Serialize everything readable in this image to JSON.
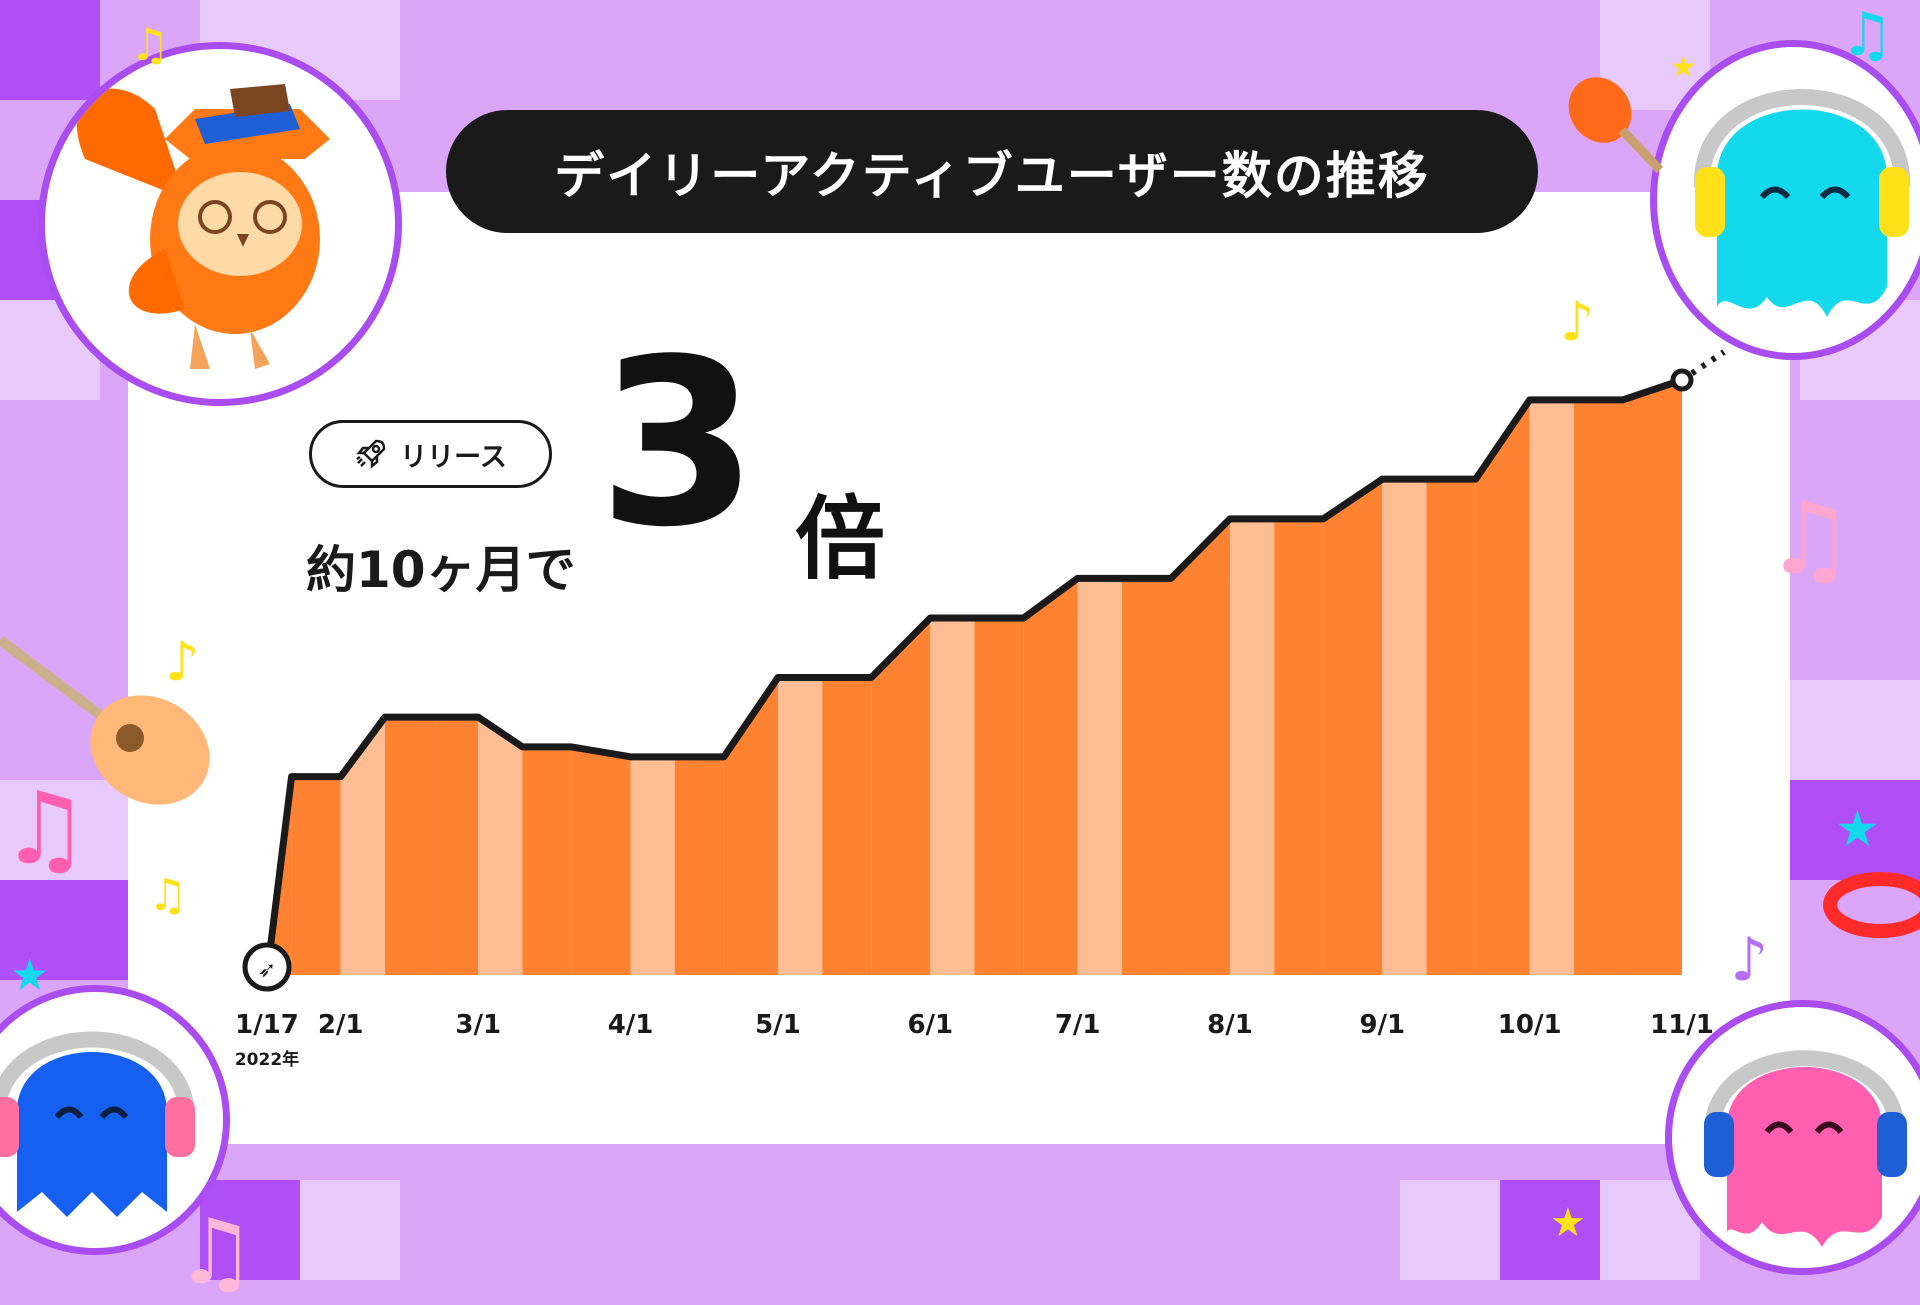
{
  "title": "デイリーアクティブユーザー数の推移",
  "badge": {
    "label": "リリース",
    "icon": "rocket-icon"
  },
  "headline": {
    "period": "約10ヶ月で",
    "multiplier": "3",
    "unit": "倍"
  },
  "colors": {
    "background": "#dba6f7",
    "bar_dark": "#ff8233",
    "bar_light": "#ffbd94",
    "line": "#1a1a1a",
    "accent_purple": "#a94cf0"
  },
  "chart_data": {
    "type": "area",
    "title": "デイリーアクティブユーザー数の推移",
    "x_labels": [
      "1/17",
      "2/1",
      "3/1",
      "4/1",
      "5/1",
      "6/1",
      "7/1",
      "8/1",
      "9/1",
      "10/1",
      "11/1"
    ],
    "x_sub_label": "2022年",
    "x": [
      "2022-01-17",
      "2022-01-22",
      "2022-02-01",
      "2022-02-10",
      "2022-02-20",
      "2022-03-01",
      "2022-03-10",
      "2022-03-20",
      "2022-04-01",
      "2022-04-10",
      "2022-04-20",
      "2022-05-01",
      "2022-05-10",
      "2022-05-20",
      "2022-06-01",
      "2022-06-10",
      "2022-06-20",
      "2022-07-01",
      "2022-07-10",
      "2022-07-20",
      "2022-08-01",
      "2022-08-10",
      "2022-08-20",
      "2022-09-01",
      "2022-09-10",
      "2022-09-20",
      "2022-10-01",
      "2022-10-10",
      "2022-10-20",
      "2022-11-01"
    ],
    "values": [
      0,
      1.0,
      1.0,
      1.3,
      1.3,
      1.3,
      1.15,
      1.15,
      1.1,
      1.1,
      1.1,
      1.5,
      1.5,
      1.5,
      1.8,
      1.8,
      1.8,
      2.0,
      2.0,
      2.0,
      2.3,
      2.3,
      2.3,
      2.5,
      2.5,
      2.5,
      2.9,
      2.9,
      2.9,
      3.0
    ],
    "multiplier_vs_start": 3,
    "grid": false,
    "legend": "none"
  }
}
